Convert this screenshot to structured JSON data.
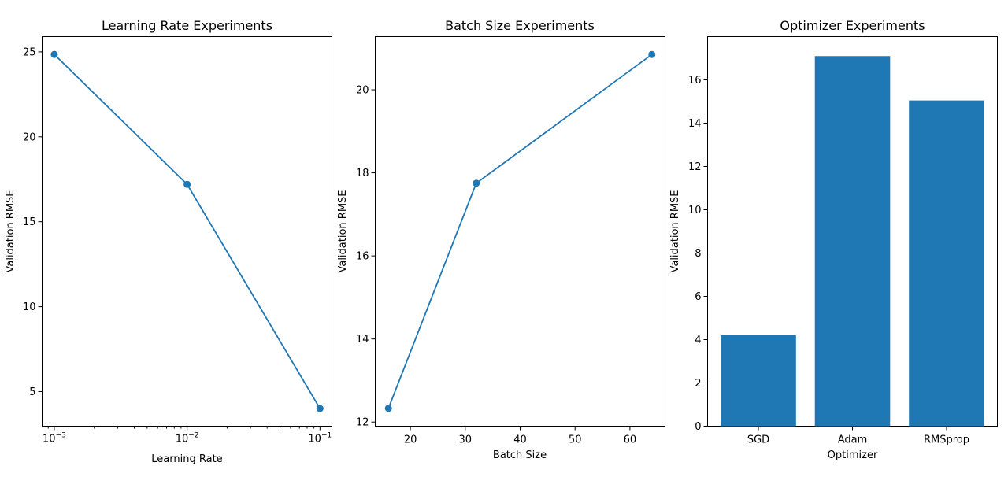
{
  "chart_data": [
    {
      "type": "line",
      "title": "Learning Rate Experiments",
      "xlabel": "Learning Rate",
      "ylabel": "Validation RMSE",
      "xscale": "log",
      "grid": false,
      "x": [
        0.001,
        0.01,
        0.1
      ],
      "series": [
        {
          "values": [
            24.85,
            17.2,
            4.0
          ],
          "color": "#1f77b4"
        }
      ],
      "xlim": [
        0.00081,
        0.123
      ],
      "ylim": [
        2.96,
        25.9
      ],
      "xtick_labels": [
        "10^-3",
        "10^-2",
        "10^-1"
      ],
      "yticks": [
        5,
        10,
        15,
        20,
        25
      ],
      "ytick_labels": [
        "5",
        "10",
        "15",
        "20",
        "25"
      ]
    },
    {
      "type": "line",
      "title": "Batch Size Experiments",
      "xlabel": "Batch Size",
      "ylabel": "Validation RMSE",
      "grid": false,
      "x": [
        16,
        32,
        64
      ],
      "series": [
        {
          "values": [
            12.33,
            17.75,
            20.85
          ],
          "color": "#1f77b4"
        }
      ],
      "xlim": [
        13.6,
        66.4
      ],
      "ylim": [
        11.9,
        21.28
      ],
      "xticks": [
        20,
        30,
        40,
        50,
        60
      ],
      "xtick_labels": [
        "20",
        "30",
        "40",
        "50",
        "60"
      ],
      "yticks": [
        12,
        14,
        16,
        18,
        20
      ],
      "ytick_labels": [
        "12",
        "14",
        "16",
        "18",
        "20"
      ]
    },
    {
      "type": "bar",
      "title": "Optimizer Experiments",
      "xlabel": "Optimizer",
      "ylabel": "Validation RMSE",
      "grid": false,
      "categories": [
        "SGD",
        "Adam",
        "RMSprop"
      ],
      "values": [
        4.2,
        17.1,
        15.05
      ],
      "color": "#1f77b4",
      "ylim": [
        0,
        18.0
      ],
      "yticks": [
        0,
        2,
        4,
        6,
        8,
        10,
        12,
        14,
        16
      ],
      "ytick_labels": [
        "0",
        "2",
        "4",
        "6",
        "8",
        "10",
        "12",
        "14",
        "16"
      ]
    }
  ]
}
